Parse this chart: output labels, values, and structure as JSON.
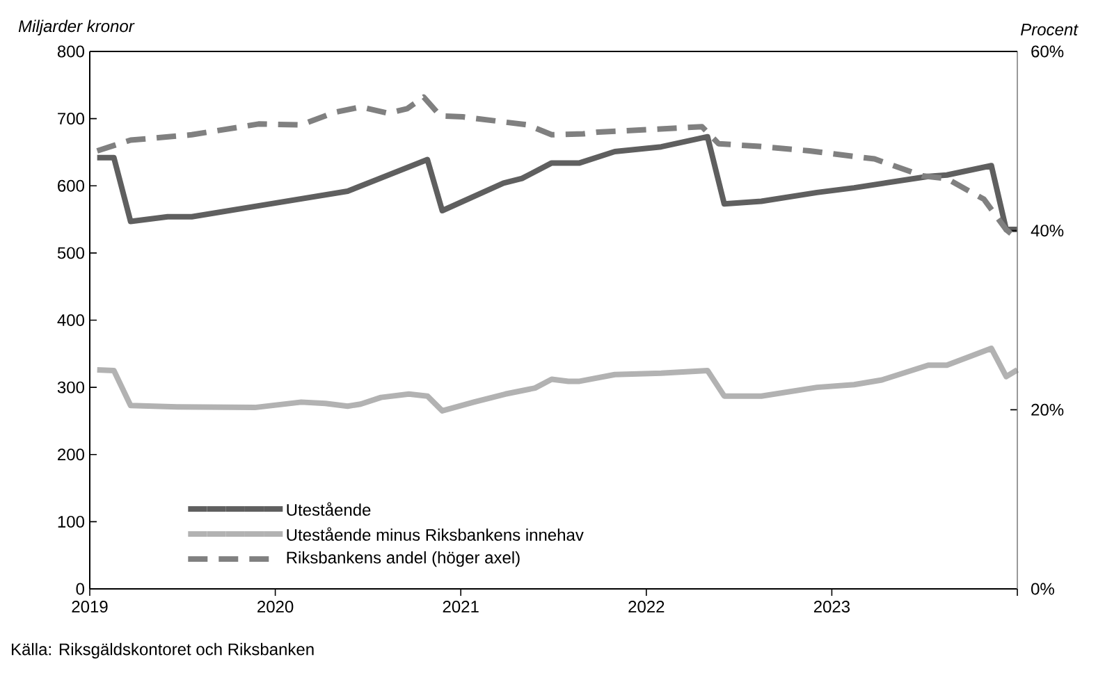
{
  "chart_data": {
    "type": "line",
    "ylabel": "Miljarder kronor",
    "y2label": "Procent",
    "xlim": [
      2019,
      2024
    ],
    "xticks": [
      2019,
      2020,
      2021,
      2022,
      2023,
      {
        "value": 2024,
        "label": null
      }
    ],
    "ylim": [
      0,
      800
    ],
    "yticks": [
      0,
      100,
      200,
      300,
      400,
      500,
      600,
      700,
      800
    ],
    "y2lim": [
      0,
      60
    ],
    "y2ticks": [
      {
        "value": 0,
        "label": "0%"
      },
      {
        "value": 20,
        "label": "20%"
      },
      {
        "value": 40,
        "label": "40%"
      },
      {
        "value": 60,
        "label": "60%"
      }
    ],
    "legend": "bottom left",
    "grid": false,
    "annotations": [
      "Källa: Riksgäldskontoret och Riksbanken"
    ],
    "series": [
      {
        "name": "Utestående",
        "color": "#5f5f5f",
        "line_style": "solid",
        "x": [
          2019.04,
          2019.13,
          2019.22,
          2019.42,
          2019.55,
          2019.97,
          2020.39,
          2020.82,
          2020.9,
          2021.23,
          2021.33,
          2021.49,
          2021.64,
          2021.83,
          2022.08,
          2022.33,
          2022.42,
          2022.62,
          2022.92,
          2023.12,
          2023.52,
          2023.62,
          2023.86,
          2023.94,
          2024.0
        ],
        "values": [
          642,
          642,
          547,
          554,
          554,
          573,
          592,
          639,
          563,
          604,
          611,
          634,
          634,
          651,
          658,
          673,
          573,
          577,
          590,
          597,
          614,
          616,
          630,
          535,
          535
        ]
      },
      {
        "name": "Utestående minus Riksbankens innehav",
        "color": "#b2b2b2",
        "line_style": "solid",
        "x": [
          2019.04,
          2019.13,
          2019.22,
          2019.47,
          2019.89,
          2020.14,
          2020.27,
          2020.39,
          2020.46,
          2020.57,
          2020.72,
          2020.82,
          2020.9,
          2021.07,
          2021.24,
          2021.4,
          2021.49,
          2021.58,
          2021.64,
          2021.83,
          2022.08,
          2022.33,
          2022.42,
          2022.62,
          2022.92,
          2023.12,
          2023.27,
          2023.52,
          2023.62,
          2023.86,
          2023.94,
          2024.0
        ],
        "values": [
          326,
          325,
          273,
          271,
          270,
          278,
          276,
          272,
          275,
          285,
          290,
          287,
          265,
          278,
          290,
          299,
          312,
          309,
          309,
          319,
          321,
          325,
          287,
          287,
          300,
          304,
          311,
          333,
          333,
          358,
          316,
          326
        ]
      },
      {
        "name": "Riksbankens andel (höger axel)",
        "color": "#808080",
        "line_style": "dashed",
        "axis": "y2",
        "x": [
          2019.04,
          2019.22,
          2019.55,
          2019.91,
          2020.14,
          2020.32,
          2020.46,
          2020.61,
          2020.71,
          2020.8,
          2020.89,
          2021.01,
          2021.36,
          2021.49,
          2021.66,
          2021.74,
          2022.04,
          2022.3,
          2022.39,
          2022.61,
          2022.88,
          2023.23,
          2023.49,
          2023.62,
          2023.82,
          2023.94,
          2024.0
        ],
        "values": [
          48.9,
          50.1,
          50.7,
          51.9,
          51.8,
          53.2,
          53.8,
          53.1,
          53.6,
          54.9,
          52.8,
          52.7,
          51.8,
          50.7,
          50.8,
          51.0,
          51.3,
          51.6,
          49.7,
          49.4,
          48.9,
          48.0,
          46.1,
          45.8,
          43.5,
          40.1,
          39.1
        ]
      }
    ]
  }
}
